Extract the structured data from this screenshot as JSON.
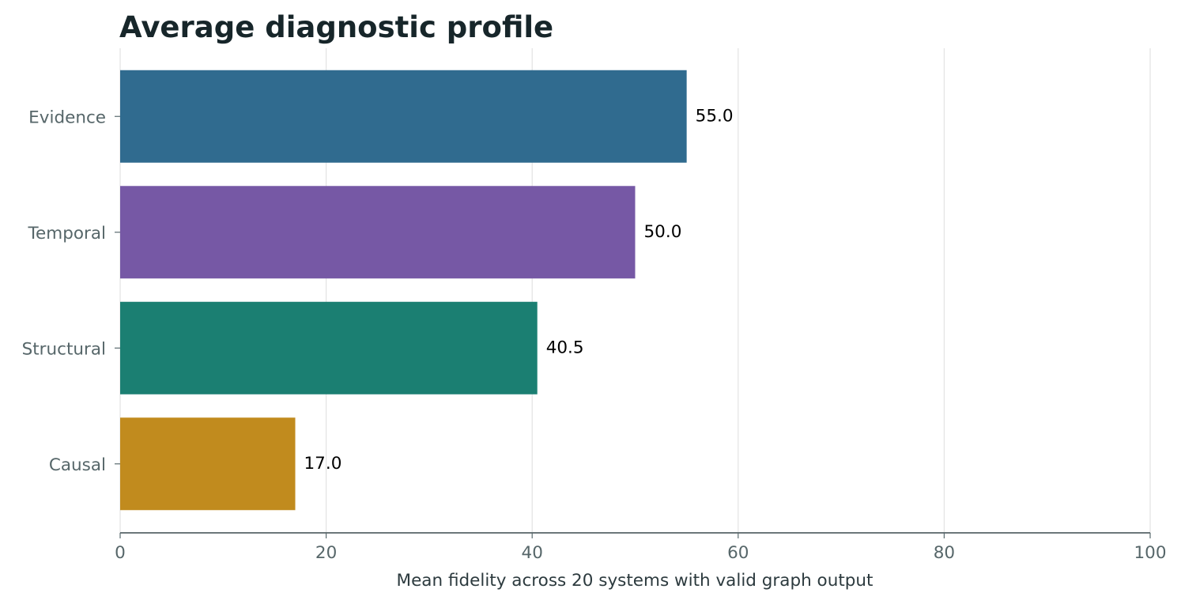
{
  "chart_data": {
    "type": "bar",
    "orientation": "horizontal",
    "title": "Average diagnostic profile",
    "xlabel": "Mean fidelity across 20 systems with valid graph output",
    "ylabel": "",
    "xlim": [
      0,
      100
    ],
    "xticks": [
      0,
      20,
      40,
      60,
      80,
      100
    ],
    "grid": "vertical",
    "categories": [
      "Evidence",
      "Temporal",
      "Structural",
      "Causal"
    ],
    "values": [
      55.0,
      50.0,
      40.5,
      17.0
    ],
    "value_labels": [
      "55.0",
      "50.0",
      "40.5",
      "17.0"
    ],
    "colors": [
      "#306b8f",
      "#7658a5",
      "#1b7f72",
      "#c18b1e"
    ]
  }
}
